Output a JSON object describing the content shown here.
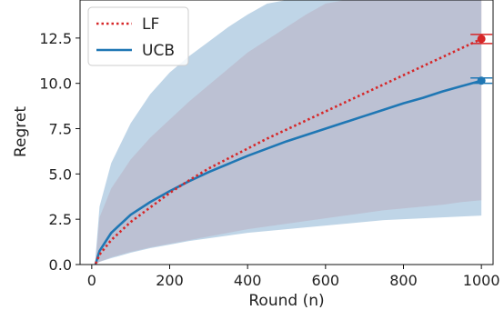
{
  "chart_data": {
    "type": "line",
    "xlabel": "Round (n)",
    "ylabel": "Regret",
    "xlim": [
      -30,
      1030
    ],
    "ylim": [
      0,
      14.6
    ],
    "xticks": [
      0,
      200,
      400,
      600,
      800,
      1000
    ],
    "xtick_labels": [
      "0",
      "200",
      "400",
      "600",
      "800",
      "1000"
    ],
    "yticks": [
      0.0,
      2.5,
      5.0,
      7.5,
      10.0,
      12.5
    ],
    "ytick_labels": [
      "0.0",
      "2.5",
      "5.0",
      "7.5",
      "10.0",
      "12.5"
    ],
    "grid": false,
    "legend_position": "upper-left",
    "series": [
      {
        "name": "LF",
        "color": "#d62728",
        "band_color": "#f2a6a6",
        "line_style": "dotted",
        "x": [
          10,
          20,
          50,
          100,
          150,
          200,
          250,
          300,
          350,
          400,
          450,
          500,
          550,
          600,
          650,
          700,
          750,
          800,
          850,
          900,
          950,
          1000
        ],
        "y": [
          0.05,
          0.55,
          1.35,
          2.35,
          3.15,
          3.95,
          4.65,
          5.3,
          5.85,
          6.4,
          6.95,
          7.45,
          7.95,
          8.45,
          8.95,
          9.45,
          9.95,
          10.45,
          10.95,
          11.45,
          11.95,
          12.45
        ],
        "lower": [
          0.0,
          0.15,
          0.4,
          0.7,
          0.95,
          1.15,
          1.35,
          1.55,
          1.75,
          1.95,
          2.1,
          2.25,
          2.4,
          2.55,
          2.7,
          2.85,
          3.0,
          3.1,
          3.2,
          3.3,
          3.45,
          3.55
        ],
        "upper": [
          0.3,
          2.6,
          4.2,
          5.8,
          7.0,
          8.0,
          9.0,
          9.9,
          10.8,
          11.7,
          12.4,
          13.1,
          13.8,
          14.4,
          14.6,
          14.6,
          14.6,
          14.6,
          14.6,
          14.6,
          14.6,
          14.6
        ],
        "final_point": {
          "x": 1000,
          "y": 12.45,
          "err": 0.25
        }
      },
      {
        "name": "UCB",
        "color": "#1f77b4",
        "band_color": "#9cbfda",
        "line_style": "solid",
        "x": [
          10,
          20,
          50,
          100,
          150,
          200,
          250,
          300,
          350,
          400,
          450,
          500,
          550,
          600,
          650,
          700,
          750,
          800,
          850,
          900,
          950,
          1000
        ],
        "y": [
          0.05,
          0.75,
          1.75,
          2.75,
          3.45,
          4.05,
          4.6,
          5.1,
          5.55,
          6.0,
          6.4,
          6.8,
          7.15,
          7.5,
          7.85,
          8.2,
          8.55,
          8.9,
          9.2,
          9.55,
          9.85,
          10.15
        ],
        "lower": [
          0.0,
          0.15,
          0.35,
          0.65,
          0.9,
          1.1,
          1.3,
          1.45,
          1.6,
          1.75,
          1.85,
          1.95,
          2.05,
          2.15,
          2.25,
          2.35,
          2.45,
          2.5,
          2.55,
          2.6,
          2.65,
          2.7
        ],
        "upper": [
          0.5,
          3.2,
          5.6,
          7.8,
          9.4,
          10.6,
          11.5,
          12.3,
          13.1,
          13.8,
          14.4,
          14.6,
          14.6,
          14.6,
          14.6,
          14.6,
          14.6,
          14.6,
          14.6,
          14.6,
          14.6,
          14.6
        ],
        "final_point": {
          "x": 1000,
          "y": 10.15,
          "err": 0.15
        }
      }
    ]
  }
}
